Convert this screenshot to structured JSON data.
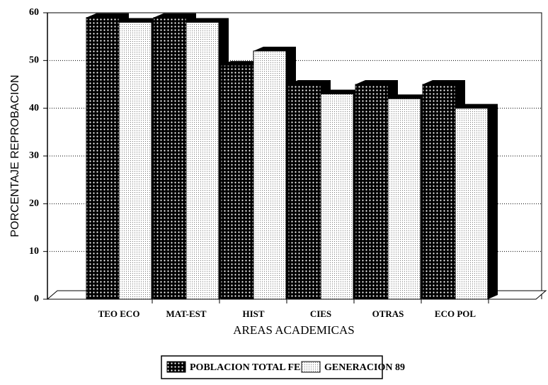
{
  "chart_data": {
    "type": "bar",
    "y_label": "PORCENTAJE REPROBACION",
    "x_label": "AREAS ACADEMICAS",
    "categories": [
      "TEO ECO",
      "MAT-EST",
      "HIST",
      "CIES",
      "OTRAS",
      "ECO POL"
    ],
    "series": [
      {
        "name": "POBLACION TOTAL FE",
        "color": "#000000",
        "values": [
          59,
          59,
          49,
          45,
          45,
          45
        ]
      },
      {
        "name": "GENERACION 89",
        "color": "#ffffff",
        "values": [
          58,
          58,
          52,
          43,
          42,
          40
        ]
      }
    ],
    "ylim": [
      0,
      60
    ],
    "yticks": [
      0,
      10,
      20,
      30,
      40,
      50,
      60
    ],
    "grid": true,
    "legend": "bottom"
  }
}
